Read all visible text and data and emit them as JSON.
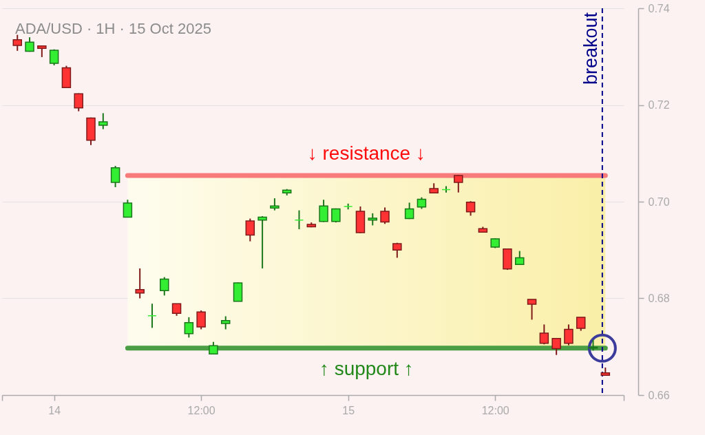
{
  "chart_data": {
    "type": "candlestick",
    "title": "ADA/USD · 1H · 15 Oct 2025",
    "x": [
      "2025-10-13T21:00",
      "2025-10-13T22:00",
      "2025-10-13T23:00",
      "2025-10-14T00:00",
      "2025-10-14T01:00",
      "2025-10-14T02:00",
      "2025-10-14T03:00",
      "2025-10-14T04:00",
      "2025-10-14T05:00",
      "2025-10-14T06:00",
      "2025-10-14T07:00",
      "2025-10-14T08:00",
      "2025-10-14T09:00",
      "2025-10-14T10:00",
      "2025-10-14T11:00",
      "2025-10-14T12:00",
      "2025-10-14T13:00",
      "2025-10-14T14:00",
      "2025-10-14T15:00",
      "2025-10-14T16:00",
      "2025-10-14T17:00",
      "2025-10-14T18:00",
      "2025-10-14T19:00",
      "2025-10-14T20:00",
      "2025-10-14T21:00",
      "2025-10-14T22:00",
      "2025-10-14T23:00",
      "2025-10-15T00:00",
      "2025-10-15T01:00",
      "2025-10-15T02:00",
      "2025-10-15T03:00",
      "2025-10-15T04:00",
      "2025-10-15T05:00",
      "2025-10-15T06:00",
      "2025-10-15T07:00",
      "2025-10-15T08:00",
      "2025-10-15T09:00",
      "2025-10-15T10:00",
      "2025-10-15T11:00",
      "2025-10-15T12:00",
      "2025-10-15T13:00",
      "2025-10-15T14:00",
      "2025-10-15T15:00",
      "2025-10-15T16:00",
      "2025-10-15T17:00",
      "2025-10-15T18:00",
      "2025-10-15T19:00",
      "2025-10-15T20:00",
      "2025-10-15T21:00"
    ],
    "ohlc": [
      [
        0.7335,
        0.7345,
        0.7312,
        0.7323
      ],
      [
        0.7311,
        0.734,
        0.731,
        0.733
      ],
      [
        0.7322,
        0.7323,
        0.7299,
        0.7317
      ],
      [
        0.7286,
        0.7315,
        0.7282,
        0.7313
      ],
      [
        0.7277,
        0.7281,
        0.7236,
        0.7236
      ],
      [
        0.7223,
        0.7224,
        0.7187,
        0.7194
      ],
      [
        0.7173,
        0.7174,
        0.7117,
        0.7127
      ],
      [
        0.7158,
        0.7183,
        0.715,
        0.7165
      ],
      [
        0.704,
        0.7074,
        0.703,
        0.707
      ],
      [
        0.6968,
        0.7004,
        0.6968,
        0.6997
      ],
      [
        0.6818,
        0.6862,
        0.68,
        0.6811
      ],
      [
        0.6764,
        0.6789,
        0.6739,
        0.6764
      ],
      [
        0.6816,
        0.6844,
        0.6806,
        0.684
      ],
      [
        0.6789,
        0.6789,
        0.6764,
        0.6769
      ],
      [
        0.6727,
        0.6761,
        0.6719,
        0.675
      ],
      [
        0.6772,
        0.6775,
        0.6736,
        0.6741
      ],
      [
        0.6685,
        0.671,
        0.6685,
        0.6702
      ],
      [
        0.6748,
        0.6763,
        0.6736,
        0.6754
      ],
      [
        0.6794,
        0.6833,
        0.6794,
        0.6832
      ],
      [
        0.696,
        0.6965,
        0.6918,
        0.6931
      ],
      [
        0.6962,
        0.697,
        0.6862,
        0.6968
      ],
      [
        0.6987,
        0.7007,
        0.6982,
        0.6991
      ],
      [
        0.7018,
        0.7026,
        0.7013,
        0.7024
      ],
      [
        0.6962,
        0.6982,
        0.6943,
        0.6962
      ],
      [
        0.6953,
        0.6957,
        0.6947,
        0.6948
      ],
      [
        0.6959,
        0.7004,
        0.6958,
        0.6991
      ],
      [
        0.6959,
        0.6986,
        0.6957,
        0.6985
      ],
      [
        0.699,
        0.6996,
        0.6984,
        0.699
      ],
      [
        0.698,
        0.699,
        0.6935,
        0.6936
      ],
      [
        0.6962,
        0.6976,
        0.6951,
        0.6966
      ],
      [
        0.698,
        0.6988,
        0.6954,
        0.6958
      ],
      [
        0.6913,
        0.6915,
        0.6884,
        0.69
      ],
      [
        0.6965,
        0.6998,
        0.6964,
        0.6985
      ],
      [
        0.6989,
        0.7009,
        0.6985,
        0.7005
      ],
      [
        0.7027,
        0.7038,
        0.7018,
        0.7018
      ],
      [
        0.7025,
        0.7032,
        0.7019,
        0.7025
      ],
      [
        0.7054,
        0.7055,
        0.7019,
        0.704
      ],
      [
        0.6999,
        0.7001,
        0.6971,
        0.6979
      ],
      [
        0.6944,
        0.6948,
        0.6936,
        0.6937
      ],
      [
        0.6906,
        0.6924,
        0.6904,
        0.6923
      ],
      [
        0.6902,
        0.6903,
        0.6859,
        0.6861
      ],
      [
        0.687,
        0.6898,
        0.687,
        0.6884
      ],
      [
        0.6798,
        0.6798,
        0.6756,
        0.6788
      ],
      [
        0.6728,
        0.6746,
        0.6705,
        0.6707
      ],
      [
        0.6717,
        0.6717,
        0.6683,
        0.6696
      ],
      [
        0.6736,
        0.6746,
        0.6703,
        0.6707
      ],
      [
        0.6761,
        0.6761,
        0.6733,
        0.6738
      ],
      [
        0.6697,
        0.6714,
        0.6692,
        0.6699
      ],
      [
        0.6646,
        0.6657,
        0.664,
        0.6641
      ]
    ],
    "colors": [
      "#ff3333",
      "#33ee33",
      "#ff3333",
      "#33ee33",
      "#ff3333",
      "#ff3333",
      "#ff3333",
      "#33ee33",
      "#33ee33",
      "#33ee33",
      "#ff3333",
      "#33ee33",
      "#33ee33",
      "#ff3333",
      "#33ee33",
      "#ff3333",
      "#33ee33",
      "#33ee33",
      "#33ee33",
      "#ff3333",
      "#33ee33",
      "#33ee33",
      "#33ee33",
      "#33ee33",
      "#ff3333",
      "#33ee33",
      "#33ee33",
      "#33ee33",
      "#ff3333",
      "#33ee33",
      "#ff3333",
      "#ff3333",
      "#33ee33",
      "#33ee33",
      "#ff3333",
      "#33ee33",
      "#ff3333",
      "#ff3333",
      "#ff3333",
      "#33ee33",
      "#ff3333",
      "#33ee33",
      "#ff3333",
      "#ff3333",
      "#ff3333",
      "#ff3333",
      "#ff3333",
      "#33ee33",
      "#ff3333"
    ],
    "series": [
      {
        "type": "line",
        "name": "↓ resistance ↓",
        "color": "#f77b7b",
        "x": [
          "2025-10-14T06:00",
          "2025-10-15T21:00"
        ],
        "values": [
          0.7054,
          0.7054
        ]
      },
      {
        "type": "line",
        "name": "↑ support ↑",
        "color": "#4a9e44",
        "x": [
          "2025-10-14T06:00",
          "2025-10-15T21:00"
        ],
        "values": [
          0.6697,
          0.6697
        ]
      },
      {
        "type": "scatter",
        "marker": "circle",
        "color": "#3c3c9c",
        "x": [
          "2025-10-15T20:45"
        ],
        "values": [
          0.6697
        ]
      }
    ],
    "bands": [
      {
        "axis": "y",
        "from": 0.6697,
        "to": 0.7054,
        "color": "#faefa8"
      }
    ],
    "ref_lines": [
      {
        "axis": "x",
        "value": "2025-10-15T20:45",
        "label": "breakout",
        "color": "#00008b",
        "line_style": "dashed"
      }
    ],
    "xlim": [
      "2025-10-13T19:45",
      "2025-10-15T22:30"
    ],
    "xticks": [
      {
        "value": "2025-10-13T19:45",
        "label": null
      },
      {
        "value": "2025-10-14",
        "label": "14"
      },
      {
        "value": "2025-10-14T12:00",
        "label": "12:00"
      },
      {
        "value": "2025-10-15",
        "label": "15"
      },
      {
        "value": "2025-10-15T12:00",
        "label": "12:00"
      },
      {
        "value": "2025-10-15T22:30",
        "label": null
      }
    ],
    "ylim": [
      0.66,
      0.74
    ],
    "yticks": [
      0.66,
      0.68,
      {
        "value": 0.7,
        "label": "0.70"
      },
      0.72,
      0.74
    ],
    "grid": "y"
  }
}
